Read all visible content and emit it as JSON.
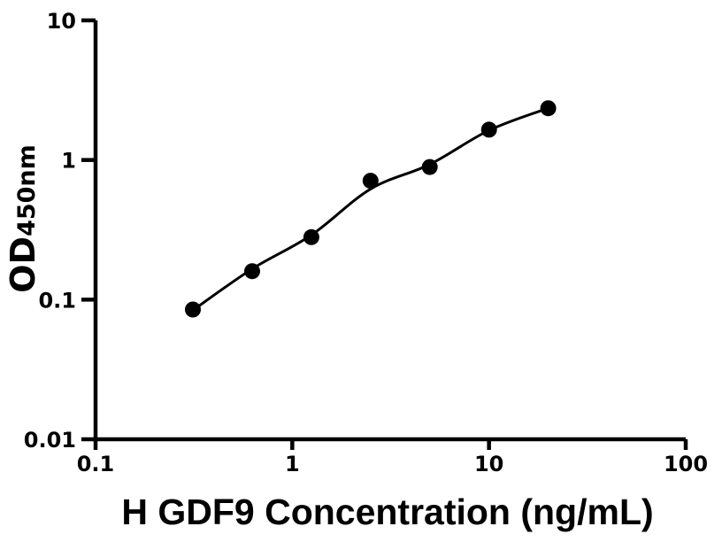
{
  "figure": {
    "background_color": "#ffffff",
    "ink_color": "#000000"
  },
  "chart_data": {
    "type": "scatter",
    "subtype": "standard-curve-with-fit-line",
    "scale": "log-log",
    "title": "",
    "xlabel": "H GDF9 Concentration (ng/mL)",
    "ylabel": "OD",
    "ylabel_subscript": "450nm",
    "x": [
      0.3125,
      0.625,
      1.25,
      2.5,
      5,
      10,
      20
    ],
    "y": [
      0.085,
      0.16,
      0.28,
      0.71,
      0.89,
      1.65,
      2.35
    ],
    "fit_curve_y": [
      0.084,
      0.166,
      0.29,
      0.62,
      0.93,
      1.63,
      2.35
    ],
    "xlim": [
      0.1,
      100
    ],
    "ylim": [
      0.01,
      10
    ],
    "x_ticks": {
      "values": [
        0.1,
        1,
        10,
        100
      ],
      "labels": [
        "0.1",
        "1",
        "10",
        "100"
      ]
    },
    "y_ticks": {
      "values": [
        10,
        1,
        0.1,
        0.01
      ],
      "labels": [
        "10",
        "1",
        "0.1",
        "0.01"
      ]
    },
    "grid": false,
    "legend": null,
    "marker": {
      "shape": "circle",
      "radius": 9,
      "color": "#000000"
    },
    "line": {
      "width": 3,
      "color": "#000000"
    },
    "axis": {
      "color": "#000000",
      "width": 4.5
    }
  }
}
